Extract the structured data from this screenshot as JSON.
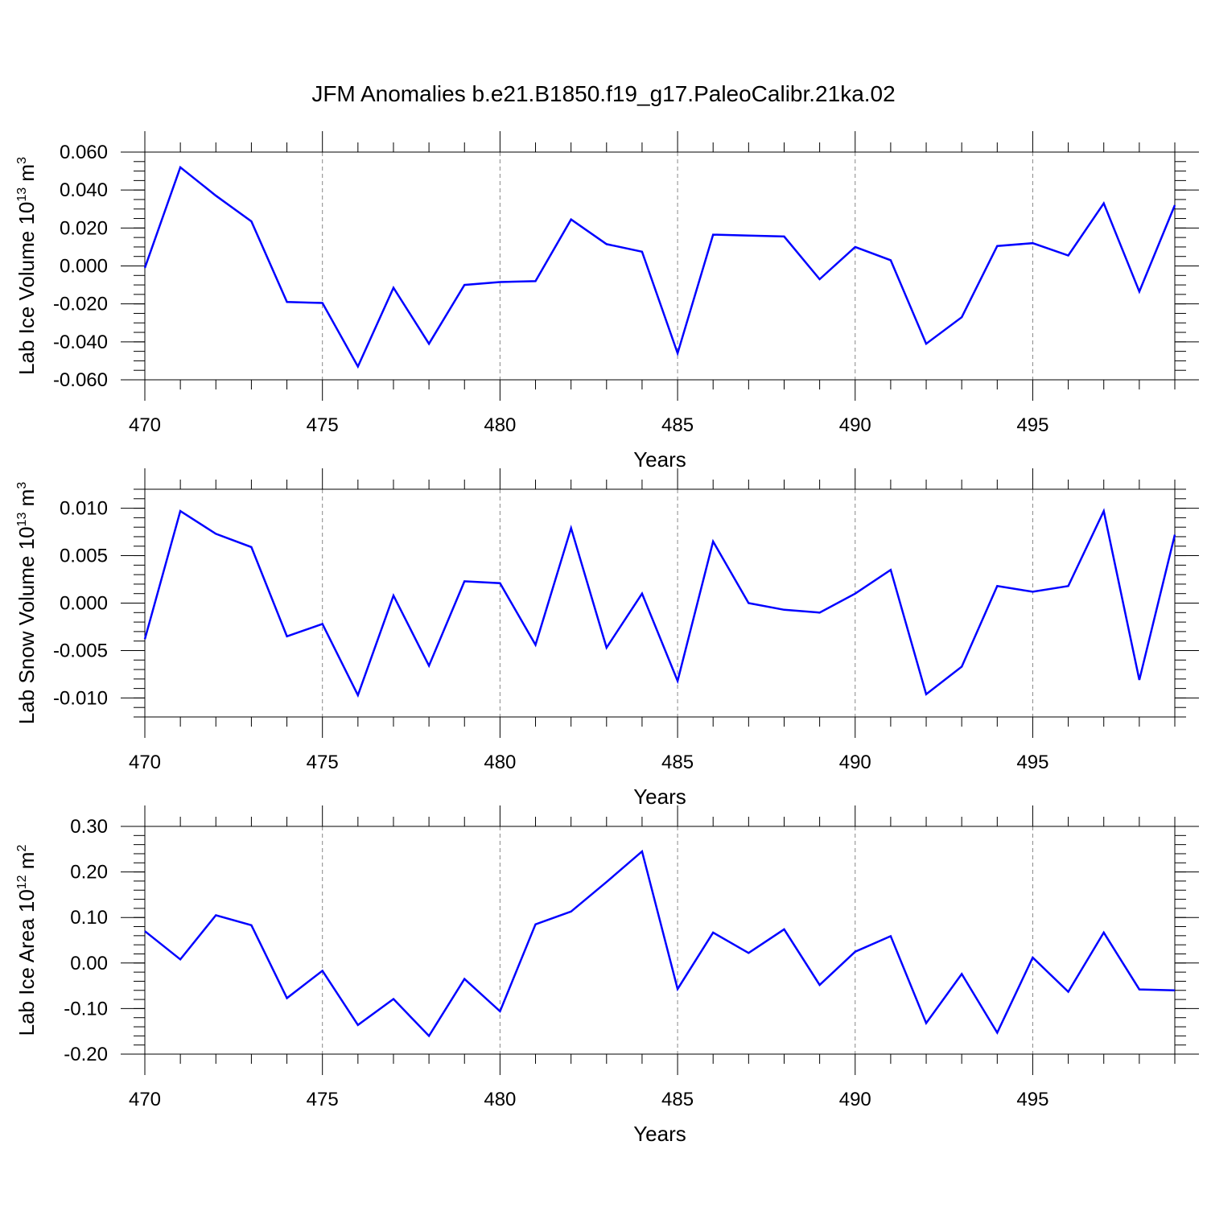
{
  "title": "JFM Anomalies b.e21.B1850.f19_g17.PaleoCalibr.21ka.02",
  "line_color": "#0000ff",
  "chart_data": [
    {
      "type": "line",
      "xlabel": "Years",
      "ylabel": {
        "prefix": "Lab Ice Volume 10",
        "exp1": "13",
        "mid": " m",
        "exp2": "3"
      },
      "xlim": [
        470,
        499
      ],
      "ylim": [
        -0.06,
        0.06
      ],
      "xticks": [
        470,
        475,
        480,
        485,
        490,
        495
      ],
      "xtick_labels": [
        "470",
        "475",
        "480",
        "485",
        "490",
        "495"
      ],
      "yticks": [
        -0.06,
        -0.04,
        -0.02,
        0.0,
        0.02,
        0.04,
        0.06
      ],
      "ytick_labels": [
        "-0.060",
        "-0.040",
        "-0.020",
        "0.000",
        "0.020",
        "0.040",
        "0.060"
      ],
      "yminor": 0.005,
      "grid": "x-dashed",
      "x": [
        470,
        471,
        472,
        473,
        474,
        475,
        476,
        477,
        478,
        479,
        480,
        481,
        482,
        483,
        484,
        485,
        486,
        487,
        488,
        489,
        490,
        491,
        492,
        493,
        494,
        495,
        496,
        497,
        498,
        499
      ],
      "values": [
        -0.001,
        0.052,
        0.037,
        0.0235,
        -0.019,
        -0.0195,
        -0.053,
        -0.0115,
        -0.041,
        -0.01,
        -0.0085,
        -0.008,
        0.0245,
        0.0115,
        0.0075,
        -0.046,
        0.0165,
        0.016,
        0.0155,
        -0.007,
        0.01,
        0.003,
        -0.041,
        -0.027,
        0.0105,
        0.012,
        0.0055,
        0.033,
        -0.0135,
        0.032
      ]
    },
    {
      "type": "line",
      "xlabel": "Years",
      "ylabel": {
        "prefix": "Lab Snow Volume 10",
        "exp1": "13",
        "mid": " m",
        "exp2": "3"
      },
      "xlim": [
        470,
        499
      ],
      "ylim": [
        -0.012,
        0.012
      ],
      "xticks": [
        470,
        475,
        480,
        485,
        490,
        495
      ],
      "xtick_labels": [
        "470",
        "475",
        "480",
        "485",
        "490",
        "495"
      ],
      "yticks": [
        -0.01,
        -0.005,
        0.0,
        0.005,
        0.01
      ],
      "ytick_labels": [
        "-0.010",
        "-0.005",
        "0.000",
        "0.005",
        "0.010"
      ],
      "yminor": 0.001,
      "grid": "x-dashed",
      "x": [
        470,
        471,
        472,
        473,
        474,
        475,
        476,
        477,
        478,
        479,
        480,
        481,
        482,
        483,
        484,
        485,
        486,
        487,
        488,
        489,
        490,
        491,
        492,
        493,
        494,
        495,
        496,
        497,
        498,
        499
      ],
      "values": [
        -0.0038,
        0.0097,
        0.0073,
        0.0059,
        -0.0035,
        -0.0022,
        -0.0097,
        0.0008,
        -0.0066,
        0.0023,
        0.0021,
        -0.0044,
        0.0079,
        -0.0047,
        0.001,
        -0.0082,
        0.0065,
        0.0,
        -0.0007,
        -0.001,
        0.001,
        0.0035,
        -0.0096,
        -0.0067,
        0.0018,
        0.0012,
        0.0018,
        0.0097,
        -0.0081,
        0.0072
      ]
    },
    {
      "type": "line",
      "xlabel": "Years",
      "ylabel": {
        "prefix": "Lab Ice Area 10",
        "exp1": "12",
        "mid": " m",
        "exp2": "2"
      },
      "xlim": [
        470,
        499
      ],
      "ylim": [
        -0.2,
        0.3
      ],
      "xticks": [
        470,
        475,
        480,
        485,
        490,
        495
      ],
      "xtick_labels": [
        "470",
        "475",
        "480",
        "485",
        "490",
        "495"
      ],
      "yticks": [
        -0.2,
        -0.1,
        0.0,
        0.1,
        0.2,
        0.3
      ],
      "ytick_labels": [
        "-0.20",
        "-0.10",
        "0.00",
        "0.10",
        "0.20",
        "0.30"
      ],
      "yminor": 0.02,
      "grid": "x-dashed",
      "x": [
        470,
        471,
        472,
        473,
        474,
        475,
        476,
        477,
        478,
        479,
        480,
        481,
        482,
        483,
        484,
        485,
        486,
        487,
        488,
        489,
        490,
        491,
        492,
        493,
        494,
        495,
        496,
        497,
        498,
        499
      ],
      "values": [
        0.07,
        0.008,
        0.105,
        0.083,
        -0.077,
        -0.017,
        -0.136,
        -0.079,
        -0.16,
        -0.035,
        -0.106,
        0.085,
        0.113,
        0.178,
        0.245,
        -0.057,
        0.067,
        0.022,
        0.074,
        -0.048,
        0.025,
        0.059,
        -0.132,
        -0.024,
        -0.153,
        0.012,
        -0.063,
        0.067,
        -0.058,
        -0.06
      ]
    }
  ]
}
